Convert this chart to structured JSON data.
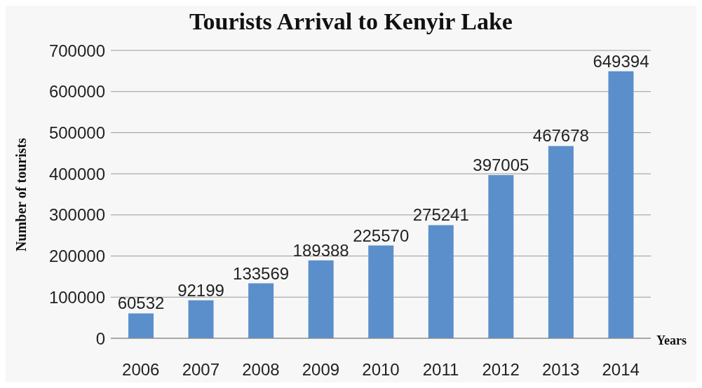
{
  "chart_data": {
    "type": "bar",
    "title": "Tourists Arrival to Kenyir Lake",
    "xlabel": "Years",
    "ylabel": "Number of tourists",
    "categories": [
      "2006",
      "2007",
      "2008",
      "2009",
      "2010",
      "2011",
      "2012",
      "2013",
      "2014"
    ],
    "values": [
      60532,
      92199,
      133569,
      189388,
      225570,
      275241,
      397005,
      467678,
      649394
    ],
    "color": "#5b8fcb",
    "ylim": [
      0,
      700000
    ],
    "yticks": [
      0,
      100000,
      200000,
      300000,
      400000,
      500000,
      600000,
      700000
    ],
    "grid": "y",
    "data_labels": true,
    "legend": false
  }
}
